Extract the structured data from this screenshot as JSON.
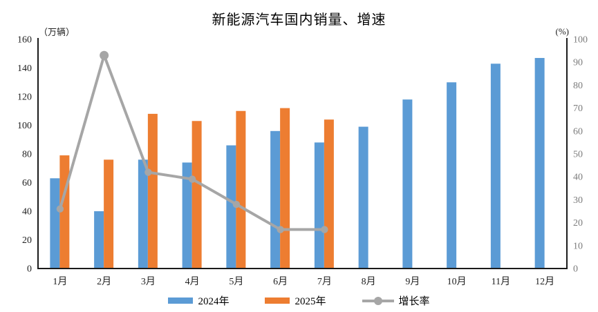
{
  "chart_data": {
    "type": "bar",
    "subtype": "combo-bar-line",
    "title": "新能源汽车国内销量、增速",
    "categories": [
      "1月",
      "2月",
      "3月",
      "4月",
      "5月",
      "6月",
      "7月",
      "8月",
      "9月",
      "10月",
      "11月",
      "12月"
    ],
    "series": [
      {
        "name": "2024年",
        "type": "bar",
        "axis": "left",
        "color": "#5B9BD5",
        "values": [
          63,
          40,
          76,
          74,
          86,
          96,
          88,
          99,
          118,
          130,
          143,
          147
        ]
      },
      {
        "name": "2025年",
        "type": "bar",
        "axis": "left",
        "color": "#ED7D31",
        "values": [
          79,
          76,
          108,
          103,
          110,
          112,
          104
        ]
      },
      {
        "name": "增长率",
        "type": "line",
        "axis": "right",
        "color": "#A6A6A6",
        "values": [
          26,
          93,
          42,
          39,
          28,
          17,
          17
        ]
      }
    ],
    "left_axis": {
      "unit": "（万辆）",
      "min": 0,
      "max": 160,
      "step": 20,
      "ticks": [
        0,
        20,
        40,
        60,
        80,
        100,
        120,
        140,
        160
      ]
    },
    "right_axis": {
      "unit": "(%)",
      "min": 0,
      "max": 100,
      "step": 10,
      "ticks": [
        0,
        10,
        20,
        30,
        40,
        50,
        60,
        70,
        80,
        90,
        100
      ]
    },
    "grid": false,
    "legend_position": "bottom",
    "axis_line_color": "#1a1a1a",
    "background_color": "#ffffff"
  }
}
